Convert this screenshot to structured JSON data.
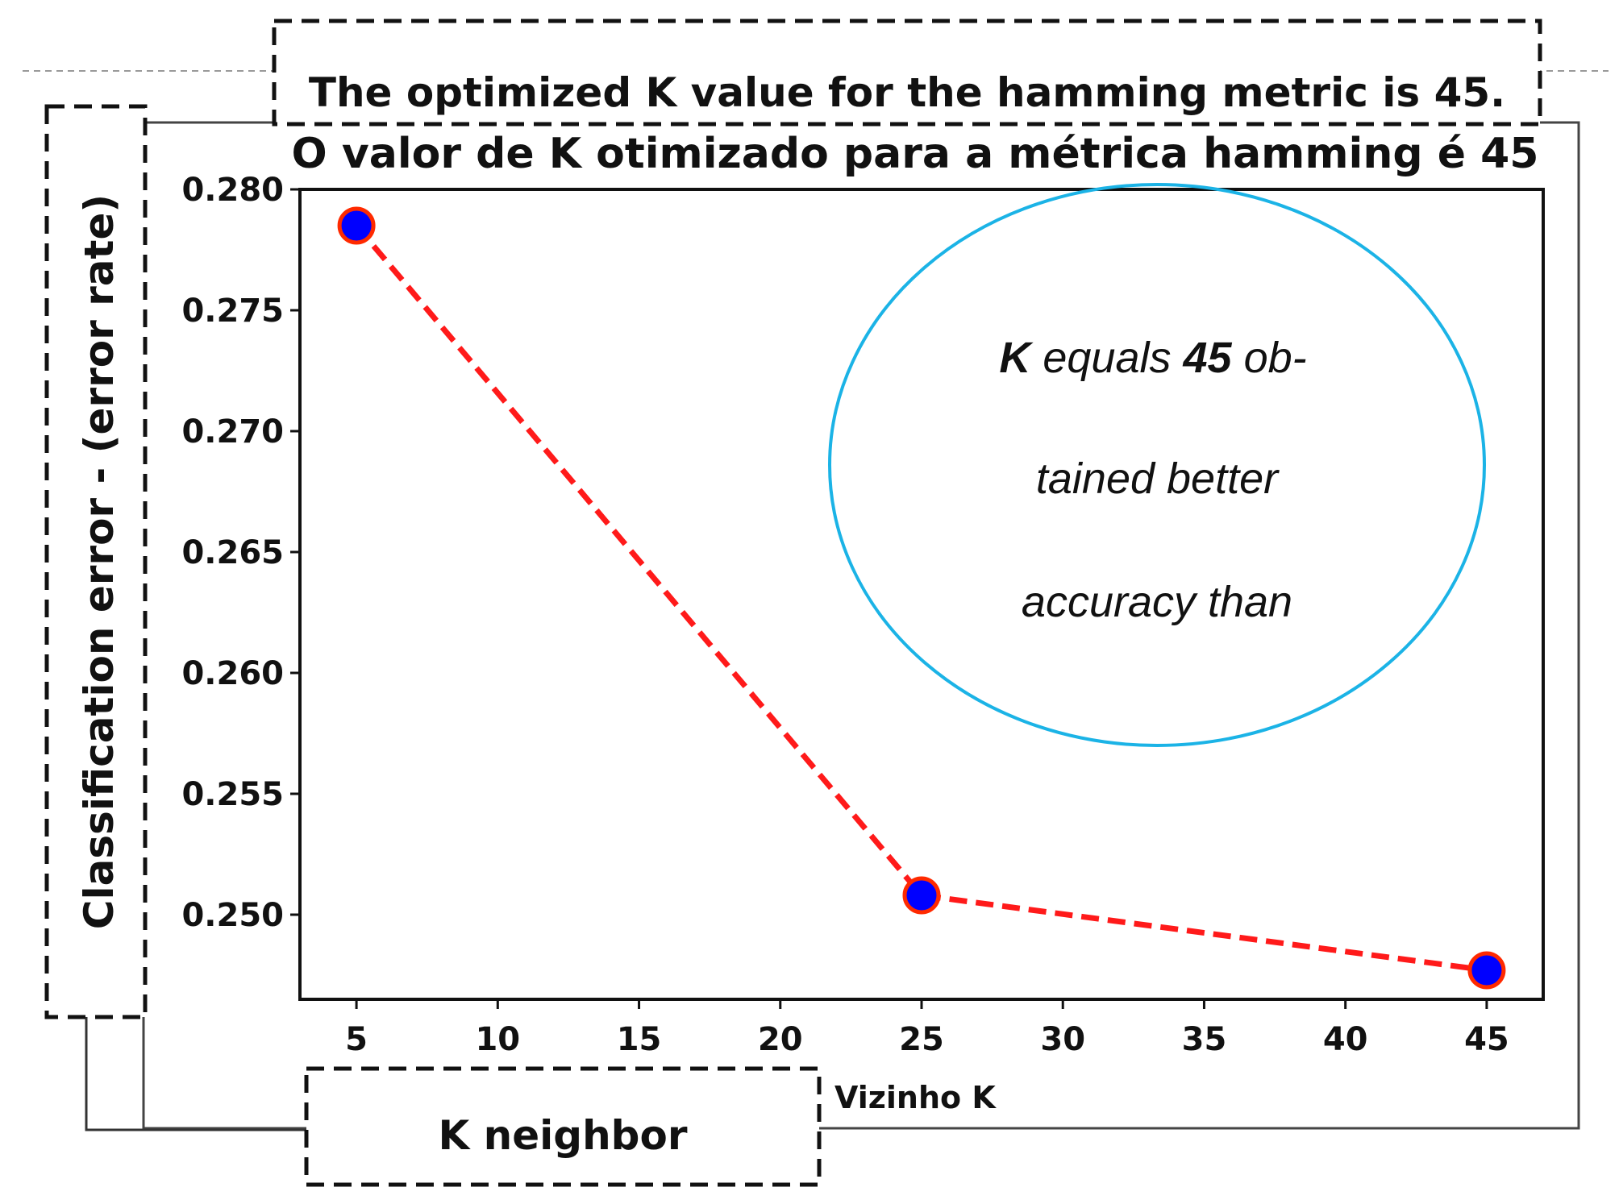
{
  "colors": {
    "line": "#ff1a1a",
    "marker_fill": "#0000ff",
    "marker_edge": "#ff2a00",
    "circle": "#1bb3e6",
    "frame": "#111111"
  },
  "callouts": {
    "title_en": "The optimized K value for the hamming metric is 45.",
    "ylabel_en": "Classification  error - (error rate)",
    "xlabel_en": "K neighbor"
  },
  "annotation": {
    "line1_bold_1": "K",
    "line1_rest_1": " equals ",
    "line1_bold_2": "45",
    "line1_rest_2": " ob-",
    "line2": "tained better",
    "line3": "accuracy than"
  },
  "chart_data": {
    "type": "line",
    "title": "O valor de K otimizado para a métrica hamming é 45",
    "xlabel": "Vizinho K",
    "ylabel": "",
    "x": [
      5,
      25,
      45
    ],
    "series": [
      {
        "name": "hamming",
        "values": [
          0.2785,
          0.2508,
          0.2477
        ]
      }
    ],
    "xlim": [
      3,
      47
    ],
    "ylim": [
      0.2465,
      0.28
    ],
    "xticks": [
      5,
      10,
      15,
      20,
      25,
      30,
      35,
      40,
      45
    ],
    "xtick_labels": [
      "5",
      "10",
      "15",
      "20",
      "25",
      "30",
      "35",
      "40",
      "45"
    ],
    "yticks": [
      0.25,
      0.255,
      0.26,
      0.265,
      0.27,
      0.275,
      0.28
    ],
    "ytick_labels": [
      "0.250",
      "0.255",
      "0.260",
      "0.265",
      "0.270",
      "0.275",
      "0.280"
    ],
    "line_style": "dashed",
    "marker": "circle",
    "grid": false
  }
}
